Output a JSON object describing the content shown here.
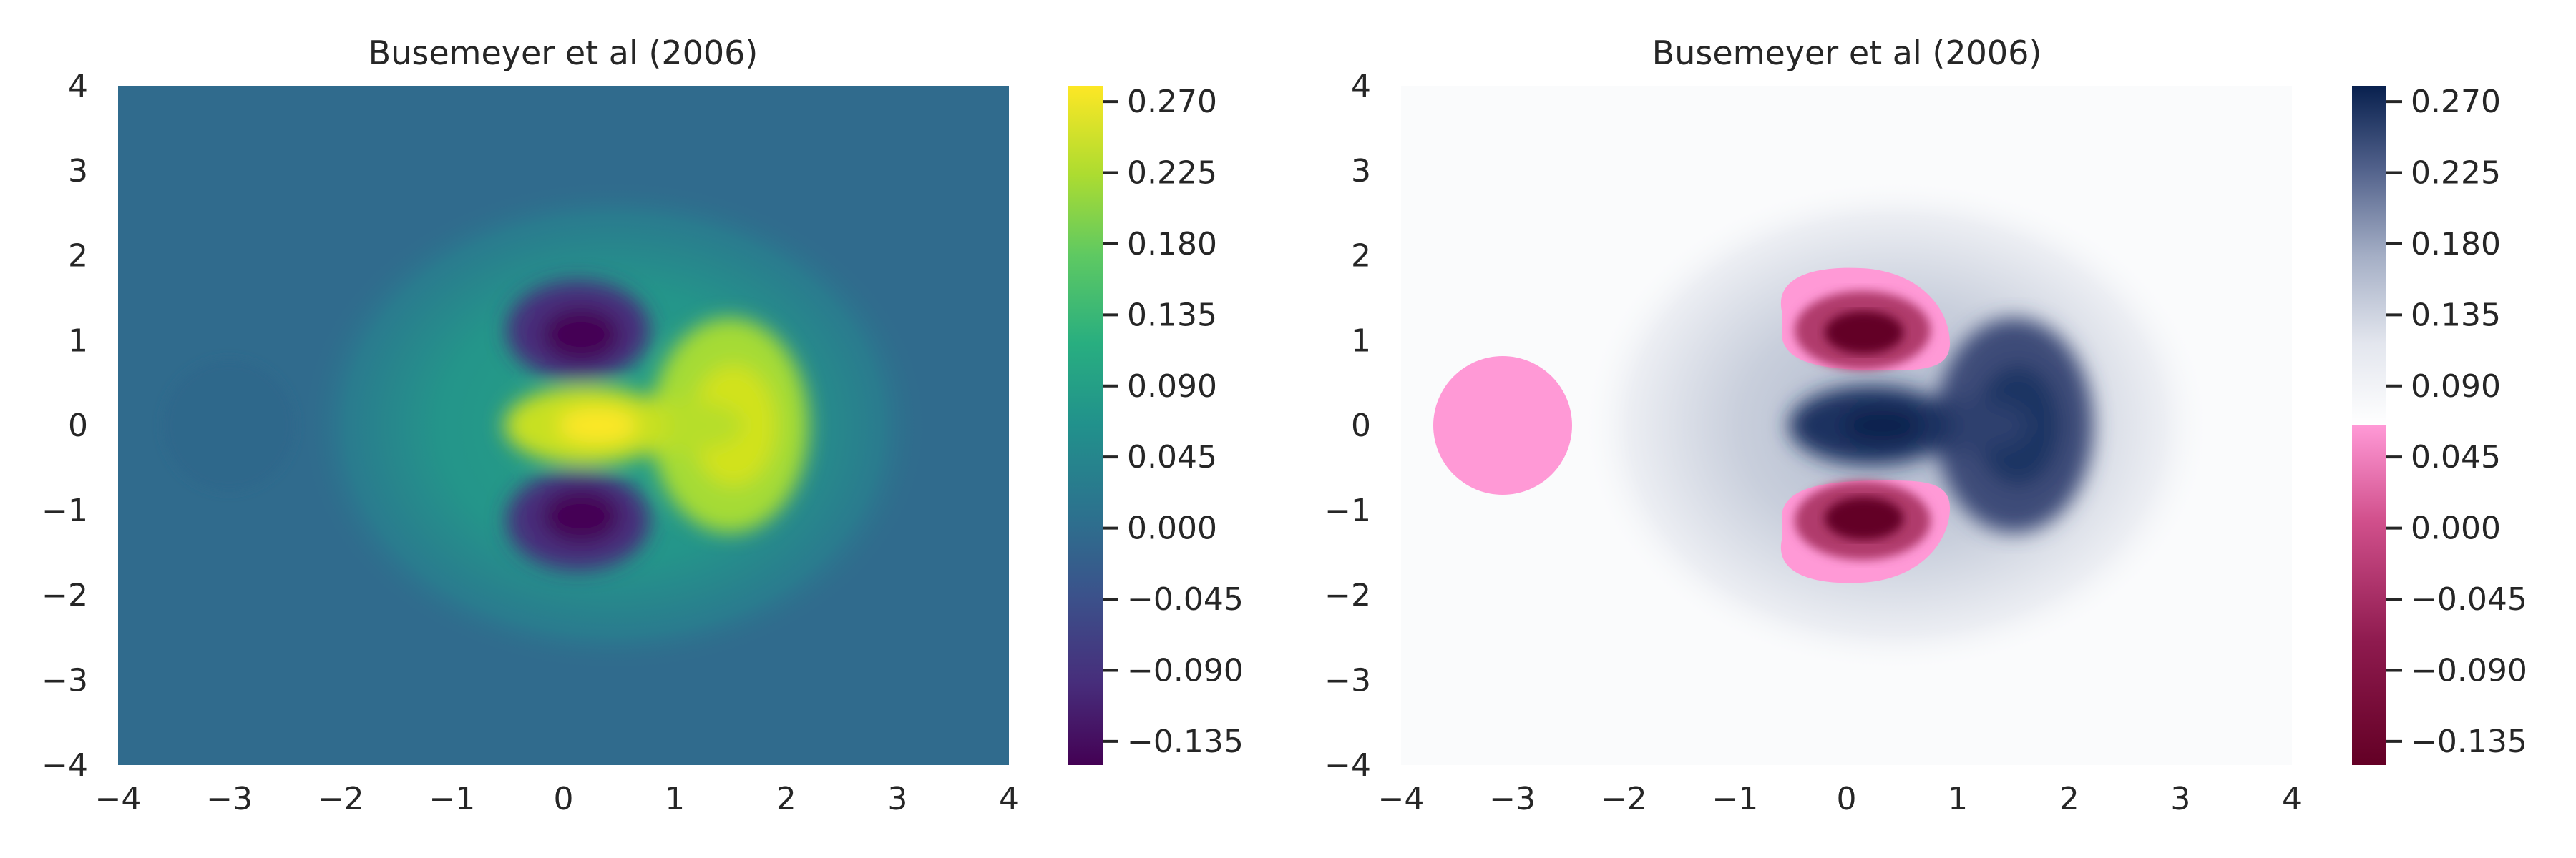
{
  "chart_data": [
    {
      "type": "heatmap",
      "title": "Busemeyer et al (2006)",
      "xlabel": "",
      "ylabel": "",
      "xlim": [
        -4,
        4
      ],
      "ylim": [
        -4,
        4
      ],
      "xticks": [
        "−4",
        "−3",
        "−2",
        "−1",
        "0",
        "1",
        "2",
        "3",
        "4"
      ],
      "yticks": [
        "4",
        "3",
        "2",
        "1",
        "0",
        "−1",
        "−2",
        "−3",
        "−4"
      ],
      "colormap": "viridis",
      "colorbar": {
        "range": [
          -0.15,
          0.28
        ],
        "ticks": [
          "0.270",
          "0.225",
          "0.180",
          "0.135",
          "0.090",
          "0.045",
          "0.000",
          "−0.045",
          "−0.090",
          "−0.135"
        ],
        "tick_values": [
          0.27,
          0.225,
          0.18,
          0.135,
          0.09,
          0.045,
          0.0,
          -0.045,
          -0.09,
          -0.135
        ]
      },
      "features": [
        {
          "kind": "peak",
          "x": 0.25,
          "y": 0.0,
          "value": 0.27
        },
        {
          "kind": "peak",
          "x": 1.5,
          "y": 0.0,
          "value": 0.23
        },
        {
          "kind": "trough",
          "x": 0.15,
          "y": 1.05,
          "value": -0.14
        },
        {
          "kind": "trough",
          "x": 0.15,
          "y": -1.05,
          "value": -0.14
        },
        {
          "kind": "dip",
          "x": -3.0,
          "y": 0.0,
          "value": -0.01
        }
      ]
    },
    {
      "type": "heatmap",
      "title": "Busemeyer et al (2006)",
      "xlabel": "",
      "ylabel": "",
      "xlim": [
        -4,
        4
      ],
      "ylim": [
        -4,
        4
      ],
      "xticks": [
        "−4",
        "−3",
        "−2",
        "−1",
        "0",
        "1",
        "2",
        "3",
        "4"
      ],
      "yticks": [
        "4",
        "3",
        "2",
        "1",
        "0",
        "−1",
        "−2",
        "−3",
        "−4"
      ],
      "colormap": "diverging pink-white-navy",
      "colorbar": {
        "range": [
          -0.15,
          0.28
        ],
        "ticks": [
          "0.270",
          "0.225",
          "0.180",
          "0.135",
          "0.090",
          "0.045",
          "0.000",
          "−0.045",
          "−0.090",
          "−0.135"
        ],
        "tick_values": [
          0.27,
          0.225,
          0.18,
          0.135,
          0.09,
          0.045,
          0.0,
          -0.045,
          -0.09,
          -0.135
        ]
      },
      "features": [
        {
          "kind": "peak",
          "x": 0.25,
          "y": 0.0,
          "value": 0.27
        },
        {
          "kind": "peak",
          "x": 1.5,
          "y": 0.0,
          "value": 0.23
        },
        {
          "kind": "trough",
          "x": 0.15,
          "y": 1.05,
          "value": -0.14
        },
        {
          "kind": "trough",
          "x": 0.15,
          "y": -1.05,
          "value": -0.14
        },
        {
          "kind": "dip",
          "x": -3.0,
          "y": 0.0,
          "value": -0.01
        }
      ]
    }
  ]
}
